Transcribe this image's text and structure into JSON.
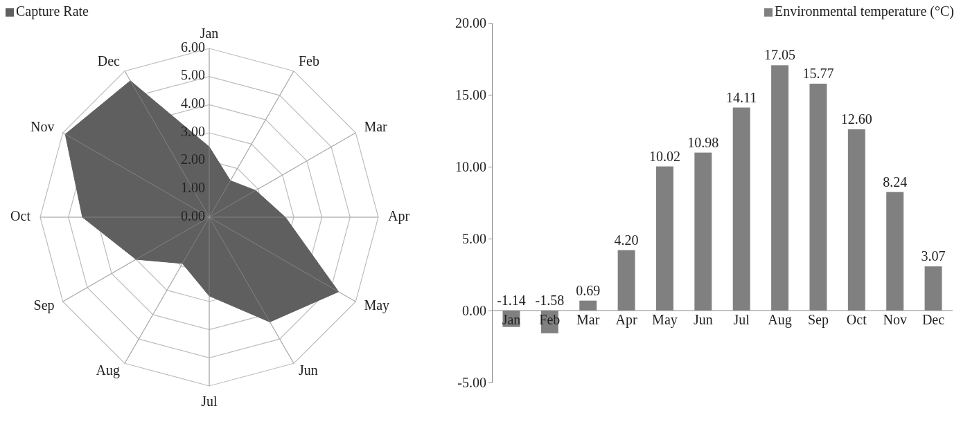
{
  "chart_data": [
    {
      "type": "radar",
      "categories": [
        "Jan",
        "Feb",
        "Mar",
        "Apr",
        "May",
        "Jun",
        "Jul",
        "Aug",
        "Sep",
        "Oct",
        "Nov",
        "Dec"
      ],
      "series": [
        {
          "name": "Capture Rate",
          "color": "#5f5f5f",
          "values": [
            2.5,
            1.5,
            1.9,
            2.7,
            5.3,
            4.3,
            2.8,
            1.9,
            3.0,
            4.5,
            5.9,
            5.6
          ]
        }
      ],
      "ylim": [
        0,
        6
      ],
      "yticks": [
        {
          "value": 0,
          "label": "0.00"
        },
        {
          "value": 1,
          "label": "1.00"
        },
        {
          "value": 2,
          "label": "2.00"
        },
        {
          "value": 3,
          "label": "3.00"
        },
        {
          "value": 4,
          "label": "4.00"
        },
        {
          "value": 5,
          "label": "5.00"
        },
        {
          "value": 6,
          "label": "6.00"
        }
      ],
      "grid": true,
      "legend": "top left"
    },
    {
      "type": "bar",
      "categories": [
        "Jan",
        "Feb",
        "Mar",
        "Apr",
        "May",
        "Jun",
        "Jul",
        "Aug",
        "Sep",
        "Oct",
        "Nov",
        "Dec"
      ],
      "series": [
        {
          "name": "Environmental temperature (°C)",
          "color": "#808080",
          "values": [
            -1.14,
            -1.58,
            0.69,
            4.2,
            10.02,
            10.98,
            14.11,
            17.05,
            15.77,
            12.6,
            8.24,
            3.07
          ],
          "value_labels": [
            "-1.14",
            "-1.58",
            "0.69",
            "4.20",
            "10.02",
            "10.98",
            "14.11",
            "17.05",
            "15.77",
            "12.60",
            "8.24",
            "3.07"
          ]
        }
      ],
      "ylim": [
        -5,
        20
      ],
      "yticks": [
        {
          "value": -5,
          "label": "-5.00"
        },
        {
          "value": 0,
          "label": "0.00"
        },
        {
          "value": 5,
          "label": "5.00"
        },
        {
          "value": 10,
          "label": "10.00"
        },
        {
          "value": 15,
          "label": "15.00"
        },
        {
          "value": 20,
          "label": "20.00"
        }
      ],
      "legend": "top right"
    }
  ]
}
